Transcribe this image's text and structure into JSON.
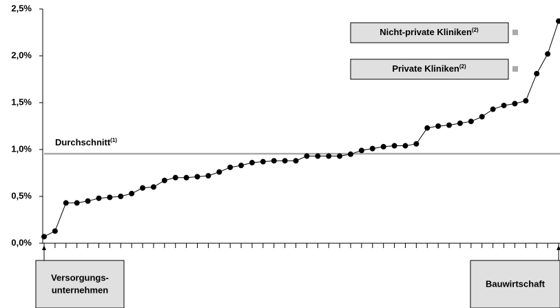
{
  "chart_data": {
    "type": "line",
    "categories": [
      null,
      null,
      null,
      null,
      null,
      null,
      null,
      null,
      null,
      null,
      null,
      null,
      null,
      null,
      null,
      null,
      null,
      null,
      null,
      null,
      null,
      null,
      null,
      null,
      null,
      null,
      null,
      null,
      null,
      null,
      null,
      null,
      null,
      null,
      null,
      null,
      null,
      null,
      null,
      null,
      null,
      null,
      null,
      null,
      null,
      null,
      null,
      null
    ],
    "values": [
      0.07,
      0.13,
      0.43,
      0.43,
      0.45,
      0.48,
      0.49,
      0.5,
      0.53,
      0.59,
      0.6,
      0.67,
      0.7,
      0.7,
      0.71,
      0.72,
      0.76,
      0.81,
      0.83,
      0.86,
      0.87,
      0.88,
      0.88,
      0.88,
      0.93,
      0.93,
      0.93,
      0.93,
      0.95,
      0.99,
      1.01,
      1.03,
      1.04,
      1.04,
      1.06,
      1.23,
      1.25,
      1.26,
      1.28,
      1.3,
      1.35,
      1.43,
      1.47,
      1.49,
      1.52,
      1.81,
      2.02,
      2.37
    ],
    "color": "#000000",
    "ylim": [
      0,
      2.5
    ],
    "yticks": [
      {
        "value": 0,
        "label": "0,0%"
      },
      {
        "value": 0.5,
        "label": "0,5%"
      },
      {
        "value": 1,
        "label": "1,0%"
      },
      {
        "value": 1.5,
        "label": "1,5%"
      },
      {
        "value": 2,
        "label": "2,0%"
      },
      {
        "value": 2.5,
        "label": "2,5%"
      }
    ],
    "reference_line": {
      "label": "Durchschnitt",
      "note": "(1)",
      "value": 0.955,
      "color": "#aaaaaa"
    },
    "legend_boxes": [
      {
        "text": "Nicht-private Kliniken",
        "note": "(2)",
        "marker_color": "#aaaaaa"
      },
      {
        "text": "Private Kliniken",
        "note": "(2)",
        "marker_color": "#aaaaaa"
      }
    ],
    "end_labels": [
      {
        "lines": [
          "Versorgungs-",
          "unternehmen"
        ]
      },
      {
        "lines": [
          "Bauwirtschaft"
        ]
      }
    ]
  }
}
